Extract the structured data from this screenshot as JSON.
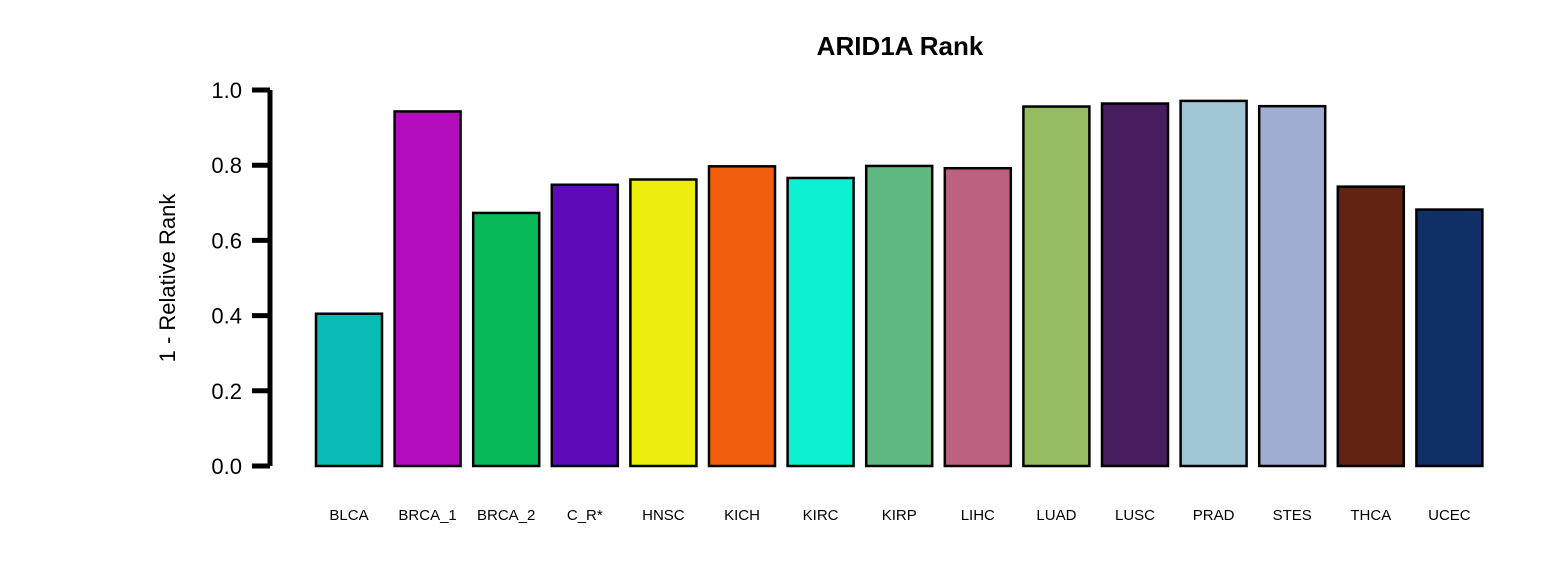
{
  "chart_data": {
    "type": "bar",
    "title": "ARID1A Rank",
    "xlabel": "",
    "ylabel": "1 - Relative Rank",
    "ylim": [
      0,
      1
    ],
    "yticks": [
      "0.0",
      "0.2",
      "0.4",
      "0.6",
      "0.8",
      "1.0"
    ],
    "grid": false,
    "legend": "none",
    "categories": [
      "BLCA",
      "BRCA_1",
      "BRCA_2",
      "C_R*",
      "HNSC",
      "KICH",
      "KIRC",
      "KIRP",
      "LIHC",
      "LUAD",
      "LUSC",
      "PRAD",
      "STES",
      "THCA",
      "UCEC"
    ],
    "values": [
      0.405,
      0.943,
      0.673,
      0.748,
      0.762,
      0.797,
      0.766,
      0.798,
      0.792,
      0.956,
      0.964,
      0.971,
      0.957,
      0.743,
      0.682
    ],
    "colors": [
      "#0ABAB5",
      "#B20CBD",
      "#08B95A",
      "#5E0AB9",
      "#EEEE0C",
      "#F15F0F",
      "#0DF1D3",
      "#5FBA81",
      "#BC6280",
      "#96BC62",
      "#471D5F",
      "#A0C5D5",
      "#A0AED2",
      "#632312",
      "#0F2F66"
    ]
  }
}
